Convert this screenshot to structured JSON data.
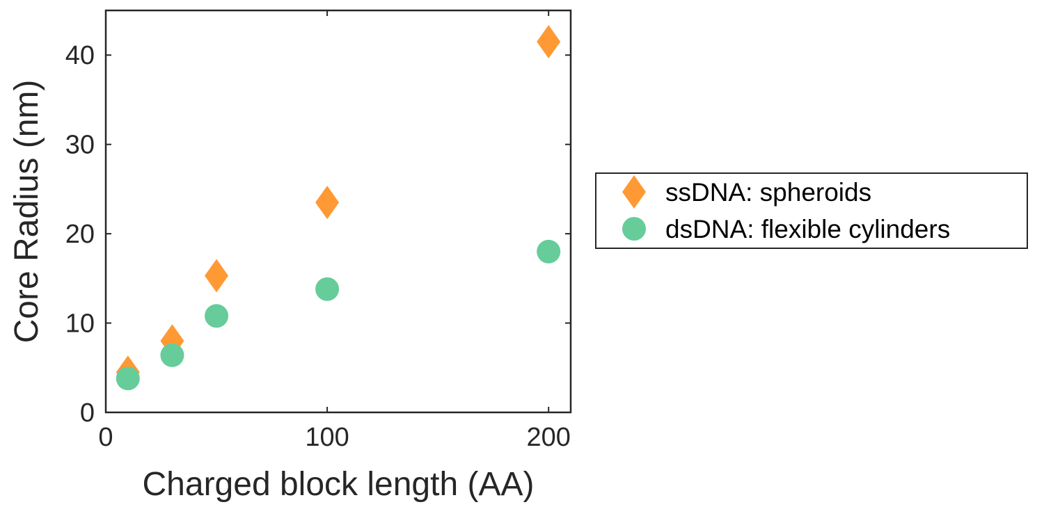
{
  "chart_data": {
    "type": "scatter",
    "xlabel": "Charged block length (AA)",
    "ylabel": "Core Radius (nm)",
    "xlim": [
      0,
      210
    ],
    "ylim": [
      0,
      45
    ],
    "x_ticks": [
      0,
      100,
      200
    ],
    "y_ticks": [
      0,
      10,
      20,
      30,
      40
    ],
    "x_tick_labels": [
      "0",
      "100",
      "200"
    ],
    "y_tick_labels": [
      "0",
      "10",
      "20",
      "30",
      "40"
    ],
    "grid": false,
    "legend_position": "outside-right",
    "series": [
      {
        "name": "ssDNA: spheroids",
        "marker": "diamond",
        "color": "#FF9933",
        "x": [
          10,
          30,
          50,
          100,
          200
        ],
        "y": [
          4.5,
          8.0,
          15.3,
          23.5,
          41.5
        ]
      },
      {
        "name": "dsDNA: flexible cylinders",
        "marker": "circle",
        "color": "#66CC99",
        "x": [
          10,
          30,
          50,
          100,
          200
        ],
        "y": [
          3.8,
          6.4,
          10.8,
          13.8,
          18.0
        ]
      }
    ]
  }
}
